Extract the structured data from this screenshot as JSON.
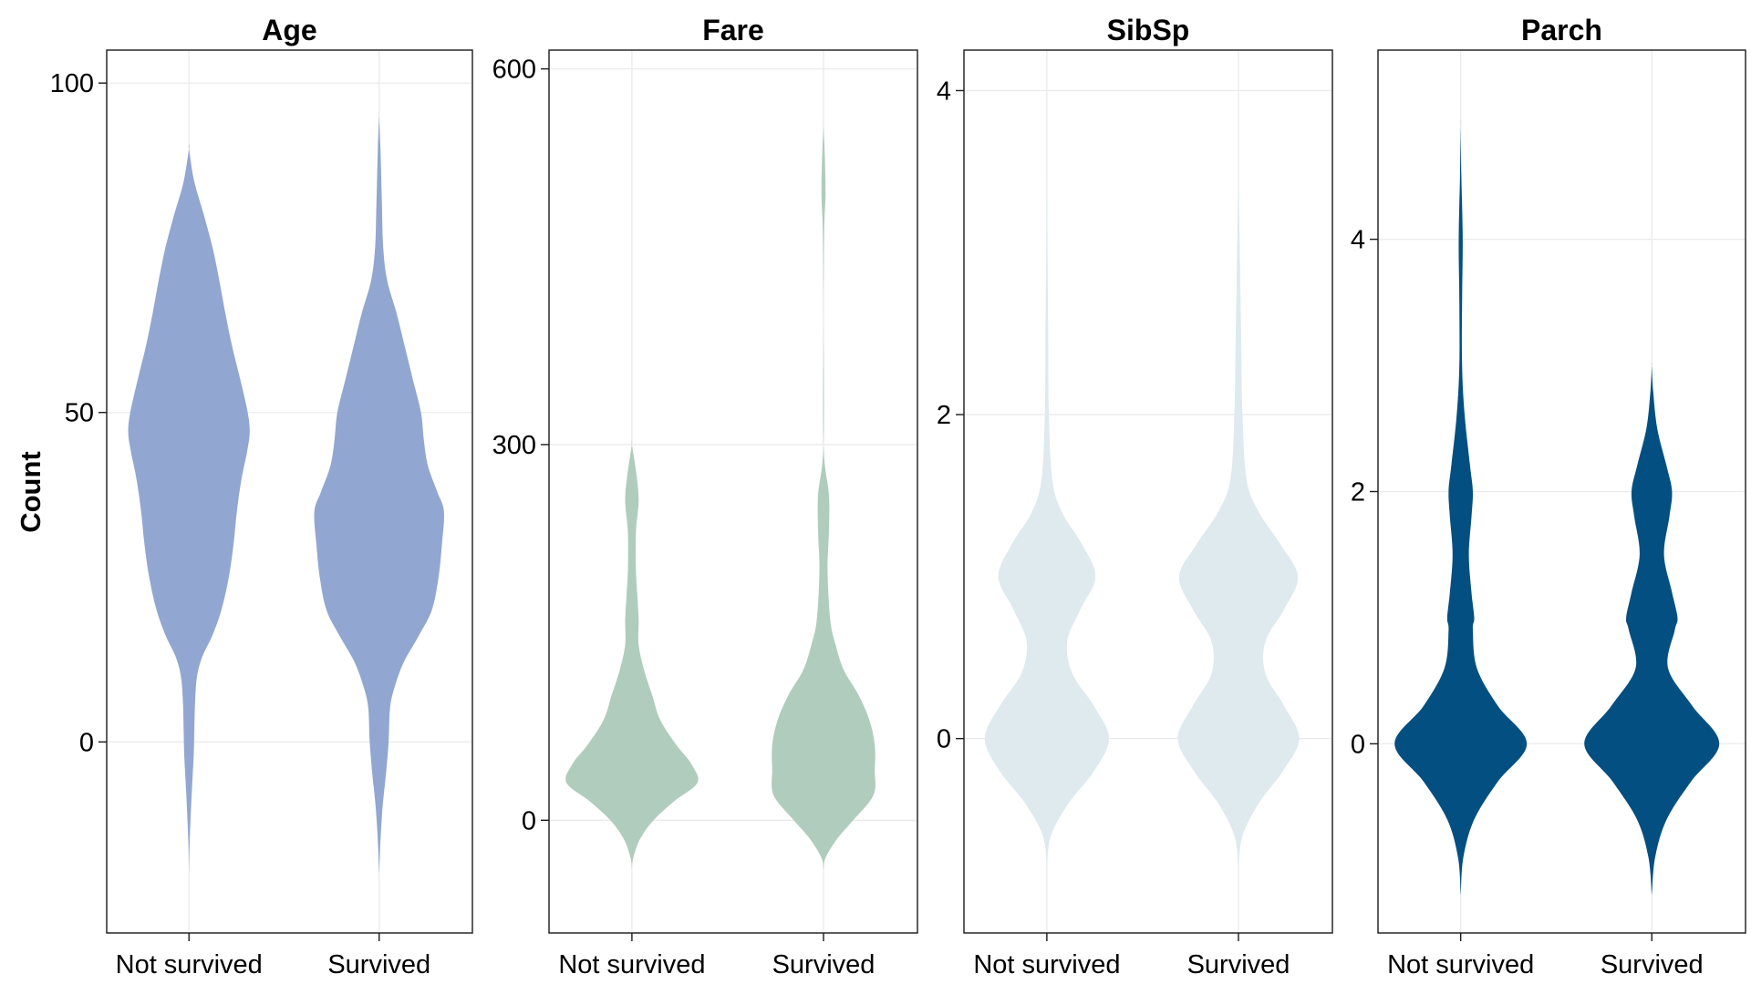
{
  "chart_data": {
    "type": "violin",
    "ylabel": "Count",
    "grid": true,
    "legend": "none",
    "categories": [
      "Not survived",
      "Survived"
    ],
    "panels": [
      {
        "title": "Age",
        "color": "#91a7d1",
        "ylim": [
          -29,
          105
        ],
        "yticks": [
          0,
          50,
          100
        ],
        "violins": [
          {
            "category": "Not survived",
            "ymin": -20,
            "ymax": 90,
            "profile": [
              [
                -20,
                0
              ],
              [
                -15,
                0.01
              ],
              [
                -8,
                0.04
              ],
              [
                -2,
                0.07
              ],
              [
                2,
                0.08
              ],
              [
                6,
                0.09
              ],
              [
                10,
                0.12
              ],
              [
                13,
                0.2
              ],
              [
                16,
                0.34
              ],
              [
                20,
                0.48
              ],
              [
                25,
                0.59
              ],
              [
                30,
                0.66
              ],
              [
                35,
                0.71
              ],
              [
                40,
                0.78
              ],
              [
                44,
                0.86
              ],
              [
                47,
                0.9
              ],
              [
                50,
                0.87
              ],
              [
                55,
                0.76
              ],
              [
                60,
                0.64
              ],
              [
                65,
                0.54
              ],
              [
                70,
                0.45
              ],
              [
                75,
                0.35
              ],
              [
                80,
                0.22
              ],
              [
                85,
                0.08
              ],
              [
                90,
                0
              ]
            ]
          },
          {
            "category": "Survived",
            "ymin": -20,
            "ymax": 95,
            "profile": [
              [
                -20,
                0
              ],
              [
                -15,
                0.02
              ],
              [
                -10,
                0.05
              ],
              [
                -5,
                0.1
              ],
              [
                0,
                0.14
              ],
              [
                5,
                0.16
              ],
              [
                8,
                0.22
              ],
              [
                12,
                0.36
              ],
              [
                16,
                0.58
              ],
              [
                20,
                0.78
              ],
              [
                25,
                0.88
              ],
              [
                30,
                0.93
              ],
              [
                35,
                0.96
              ],
              [
                38,
                0.86
              ],
              [
                42,
                0.72
              ],
              [
                46,
                0.66
              ],
              [
                50,
                0.62
              ],
              [
                55,
                0.5
              ],
              [
                60,
                0.38
              ],
              [
                65,
                0.26
              ],
              [
                70,
                0.12
              ],
              [
                75,
                0.06
              ],
              [
                82,
                0.04
              ],
              [
                90,
                0.02
              ],
              [
                95,
                0
              ]
            ]
          }
        ]
      },
      {
        "title": "Fare",
        "color": "#b0ccbd",
        "ylim": [
          -90,
          615
        ],
        "yticks": [
          0,
          300,
          600
        ],
        "violins": [
          {
            "category": "Not survived",
            "ymin": -40,
            "ymax": 300,
            "profile": [
              [
                -40,
                0
              ],
              [
                -30,
                0.02
              ],
              [
                -15,
                0.12
              ],
              [
                0,
                0.32
              ],
              [
                15,
                0.62
              ],
              [
                30,
                0.97
              ],
              [
                45,
                0.88
              ],
              [
                60,
                0.66
              ],
              [
                80,
                0.42
              ],
              [
                100,
                0.3
              ],
              [
                120,
                0.18
              ],
              [
                140,
                0.1
              ],
              [
                160,
                0.1
              ],
              [
                180,
                0.08
              ],
              [
                200,
                0.06
              ],
              [
                230,
                0.06
              ],
              [
                255,
                0.1
              ],
              [
                275,
                0.07
              ],
              [
                300,
                0
              ]
            ]
          },
          {
            "category": "Survived",
            "ymin": -40,
            "ymax": 555,
            "profile": [
              [
                -40,
                0
              ],
              [
                -30,
                0.03
              ],
              [
                -15,
                0.2
              ],
              [
                0,
                0.44
              ],
              [
                20,
                0.74
              ],
              [
                40,
                0.76
              ],
              [
                60,
                0.76
              ],
              [
                80,
                0.68
              ],
              [
                100,
                0.52
              ],
              [
                120,
                0.3
              ],
              [
                140,
                0.18
              ],
              [
                160,
                0.1
              ],
              [
                200,
                0.06
              ],
              [
                230,
                0.08
              ],
              [
                260,
                0.08
              ],
              [
                300,
                0
              ],
              [
                400,
                0
              ],
              [
                470,
                0.01
              ],
              [
                500,
                0.03
              ],
              [
                530,
                0.02
              ],
              [
                555,
                0
              ]
            ]
          }
        ]
      },
      {
        "title": "SibSp",
        "color": "#deeaee",
        "ylim": [
          -1.2,
          4.25
        ],
        "yticks": [
          0,
          2,
          4
        ],
        "violins": [
          {
            "category": "Not survived",
            "ymin": -0.8,
            "ymax": 3.5,
            "profile": [
              [
                -0.8,
                0
              ],
              [
                -0.6,
                0.06
              ],
              [
                -0.4,
                0.32
              ],
              [
                -0.2,
                0.7
              ],
              [
                0,
                0.92
              ],
              [
                0.2,
                0.7
              ],
              [
                0.4,
                0.38
              ],
              [
                0.6,
                0.3
              ],
              [
                0.8,
                0.5
              ],
              [
                1,
                0.72
              ],
              [
                1.2,
                0.52
              ],
              [
                1.4,
                0.22
              ],
              [
                1.6,
                0.08
              ],
              [
                2,
                0.03
              ],
              [
                2.5,
                0.02
              ],
              [
                3,
                0.01
              ],
              [
                3.5,
                0
              ]
            ]
          },
          {
            "category": "Survived",
            "ymin": -0.8,
            "ymax": 3.5,
            "profile": [
              [
                -0.8,
                0
              ],
              [
                -0.6,
                0.06
              ],
              [
                -0.4,
                0.3
              ],
              [
                -0.2,
                0.66
              ],
              [
                0,
                0.9
              ],
              [
                0.2,
                0.68
              ],
              [
                0.4,
                0.4
              ],
              [
                0.6,
                0.4
              ],
              [
                0.8,
                0.68
              ],
              [
                1,
                0.88
              ],
              [
                1.2,
                0.62
              ],
              [
                1.4,
                0.3
              ],
              [
                1.6,
                0.12
              ],
              [
                2,
                0.06
              ],
              [
                2.5,
                0.04
              ],
              [
                3,
                0.02
              ],
              [
                3.5,
                0
              ]
            ]
          }
        ]
      },
      {
        "title": "Parch",
        "color": "#034f81",
        "ylim": [
          -1.5,
          5.5
        ],
        "yticks": [
          0,
          2,
          4
        ],
        "violins": [
          {
            "category": "Not survived",
            "ymin": -1.2,
            "ymax": 4.9,
            "profile": [
              [
                -1.2,
                0
              ],
              [
                -0.9,
                0.04
              ],
              [
                -0.6,
                0.2
              ],
              [
                -0.3,
                0.55
              ],
              [
                0,
                0.98
              ],
              [
                0.3,
                0.55
              ],
              [
                0.6,
                0.24
              ],
              [
                0.9,
                0.18
              ],
              [
                1,
                0.2
              ],
              [
                1.2,
                0.16
              ],
              [
                1.5,
                0.12
              ],
              [
                1.8,
                0.16
              ],
              [
                2,
                0.18
              ],
              [
                2.2,
                0.14
              ],
              [
                2.6,
                0.06
              ],
              [
                3,
                0.02
              ],
              [
                3.5,
                0.02
              ],
              [
                4,
                0.03
              ],
              [
                4.5,
                0.01
              ],
              [
                4.9,
                0
              ]
            ]
          },
          {
            "category": "Survived",
            "ymin": -1.2,
            "ymax": 3,
            "profile": [
              [
                -1.2,
                0
              ],
              [
                -0.9,
                0.05
              ],
              [
                -0.6,
                0.22
              ],
              [
                -0.3,
                0.58
              ],
              [
                0,
                1
              ],
              [
                0.3,
                0.6
              ],
              [
                0.6,
                0.24
              ],
              [
                0.9,
                0.34
              ],
              [
                1,
                0.38
              ],
              [
                1.2,
                0.3
              ],
              [
                1.5,
                0.18
              ],
              [
                1.8,
                0.26
              ],
              [
                2,
                0.3
              ],
              [
                2.2,
                0.22
              ],
              [
                2.5,
                0.08
              ],
              [
                2.8,
                0.02
              ],
              [
                3,
                0
              ]
            ]
          }
        ]
      }
    ]
  }
}
